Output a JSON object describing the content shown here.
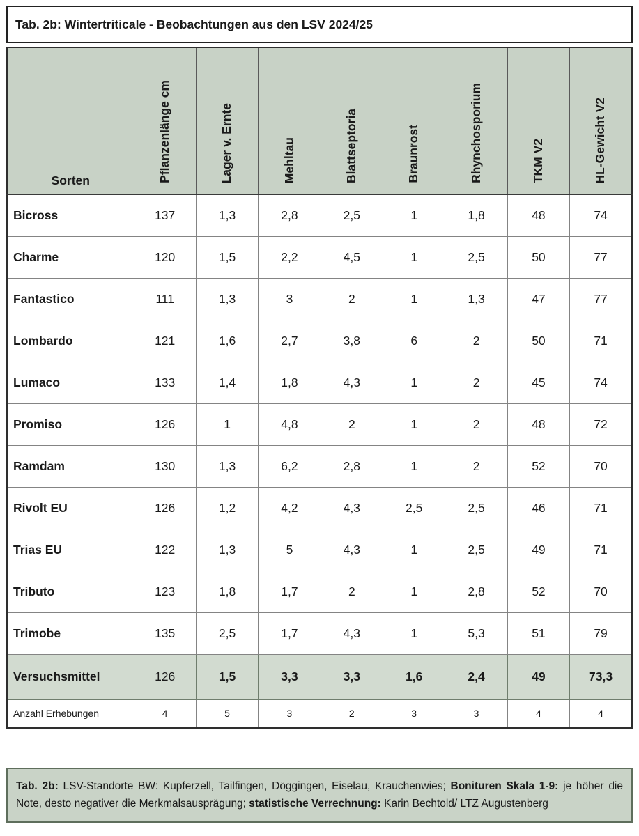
{
  "title": "Tab. 2b: Wintertriticale - Beobachtungen aus den LSV 2024/25",
  "table": {
    "row_header_label": "Sorten",
    "columns": [
      "Pflanzenlänge cm",
      "Lager v. Ernte",
      "Mehltau",
      "Blattseptoria",
      "Braunrost",
      "Rhynchosporium",
      "TKM V2",
      "HL-Gewicht V2"
    ],
    "rows": [
      {
        "name": "Bicross",
        "values": [
          "137",
          "1,3",
          "2,8",
          "2,5",
          "1",
          "1,8",
          "48",
          "74"
        ]
      },
      {
        "name": "Charme",
        "values": [
          "120",
          "1,5",
          "2,2",
          "4,5",
          "1",
          "2,5",
          "50",
          "77"
        ]
      },
      {
        "name": "Fantastico",
        "values": [
          "111",
          "1,3",
          "3",
          "2",
          "1",
          "1,3",
          "47",
          "77"
        ]
      },
      {
        "name": "Lombardo",
        "values": [
          "121",
          "1,6",
          "2,7",
          "3,8",
          "6",
          "2",
          "50",
          "71"
        ]
      },
      {
        "name": "Lumaco",
        "values": [
          "133",
          "1,4",
          "1,8",
          "4,3",
          "1",
          "2",
          "45",
          "74"
        ]
      },
      {
        "name": "Promiso",
        "values": [
          "126",
          "1",
          "4,8",
          "2",
          "1",
          "2",
          "48",
          "72"
        ]
      },
      {
        "name": "Ramdam",
        "values": [
          "130",
          "1,3",
          "6,2",
          "2,8",
          "1",
          "2",
          "52",
          "70"
        ]
      },
      {
        "name": "Rivolt EU",
        "values": [
          "126",
          "1,2",
          "4,2",
          "4,3",
          "2,5",
          "2,5",
          "46",
          "71"
        ]
      },
      {
        "name": "Trias EU",
        "values": [
          "122",
          "1,3",
          "5",
          "4,3",
          "1",
          "2,5",
          "49",
          "71"
        ]
      },
      {
        "name": "Tributo",
        "values": [
          "123",
          "1,8",
          "1,7",
          "2",
          "1",
          "2,8",
          "52",
          "70"
        ]
      },
      {
        "name": "Trimobe",
        "values": [
          "135",
          "2,5",
          "1,7",
          "4,3",
          "1",
          "5,3",
          "51",
          "79"
        ]
      }
    ],
    "summary_row": {
      "name": "Versuchsmittel",
      "values": [
        "126",
        "1,5",
        "3,3",
        "3,3",
        "1,6",
        "2,4",
        "49",
        "73,3"
      ]
    },
    "count_row": {
      "name": "Anzahl Erhebungen",
      "values": [
        "4",
        "5",
        "3",
        "2",
        "3",
        "3",
        "4",
        "4"
      ]
    }
  },
  "footnote": {
    "segments": [
      {
        "text": "Tab. 2b:",
        "bold": true
      },
      {
        "text": " LSV-Standorte BW: Kupferzell, Tailfingen, Döggingen, Eiselau, Krauchenwies; ",
        "bold": false
      },
      {
        "text": "Bonituren Skala 1-9:",
        "bold": true
      },
      {
        "text": " je höher die Note, desto negativer die Merkmalsausprägung; ",
        "bold": false
      },
      {
        "text": "statistische Verrechnung:",
        "bold": true
      },
      {
        "text": " Karin Bechtold/ LTZ Augustenberg",
        "bold": false
      }
    ]
  },
  "colors": {
    "header_green": "#c8d2c6",
    "summary_green": "#d2dbd0",
    "footnote_green": "#c9d3c7",
    "border_dark": "#222222",
    "border_gray": "#848484",
    "footnote_border": "#5e6e5c"
  }
}
